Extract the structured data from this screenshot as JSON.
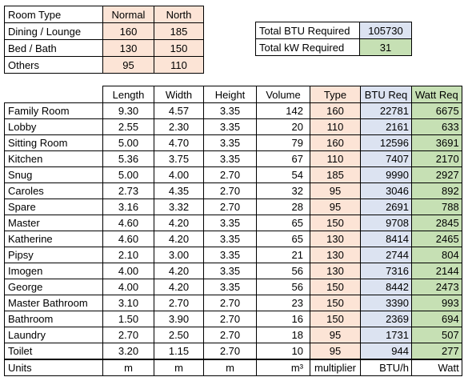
{
  "colors": {
    "peach": "#fce4d6",
    "lavender": "#dce3f1",
    "green": "#c6e0b4"
  },
  "multipliers": {
    "header": {
      "label": "Room Type",
      "normal": "Normal",
      "north": "North"
    },
    "rows": [
      {
        "label": "Dining / Lounge",
        "normal": "160",
        "north": "185"
      },
      {
        "label": "Bed / Bath",
        "normal": "130",
        "north": "150"
      },
      {
        "label": "Others",
        "normal": "95",
        "north": "110"
      }
    ]
  },
  "totals": {
    "btu_label": "Total BTU Required",
    "btu_value": "105730",
    "kw_label": "Total kW Required",
    "kw_value": "31"
  },
  "rooms": {
    "headers": {
      "length": "Length",
      "width": "Width",
      "height": "Height",
      "volume": "Volume",
      "type": "Type",
      "btu": "BTU Req",
      "watt": "Watt Req"
    },
    "rows": [
      {
        "name": "Family Room",
        "length": "9.30",
        "width": "4.57",
        "height": "3.35",
        "volume": "142",
        "type": "160",
        "btu": "22781",
        "watt": "6675"
      },
      {
        "name": "Lobby",
        "length": "2.55",
        "width": "2.30",
        "height": "3.35",
        "volume": "20",
        "type": "110",
        "btu": "2161",
        "watt": "633"
      },
      {
        "name": "Sitting Room",
        "length": "5.00",
        "width": "4.70",
        "height": "3.35",
        "volume": "79",
        "type": "160",
        "btu": "12596",
        "watt": "3691"
      },
      {
        "name": "Kitchen",
        "length": "5.36",
        "width": "3.75",
        "height": "3.35",
        "volume": "67",
        "type": "110",
        "btu": "7407",
        "watt": "2170"
      },
      {
        "name": "Snug",
        "length": "5.00",
        "width": "4.00",
        "height": "2.70",
        "volume": "54",
        "type": "185",
        "btu": "9990",
        "watt": "2927"
      },
      {
        "name": "Caroles",
        "length": "2.73",
        "width": "4.35",
        "height": "2.70",
        "volume": "32",
        "type": "95",
        "btu": "3046",
        "watt": "892"
      },
      {
        "name": "Spare",
        "length": "3.16",
        "width": "3.32",
        "height": "2.70",
        "volume": "28",
        "type": "95",
        "btu": "2691",
        "watt": "788"
      },
      {
        "name": "Master",
        "length": "4.60",
        "width": "4.20",
        "height": "3.35",
        "volume": "65",
        "type": "150",
        "btu": "9708",
        "watt": "2845"
      },
      {
        "name": "Katherine",
        "length": "4.60",
        "width": "4.20",
        "height": "3.35",
        "volume": "65",
        "type": "130",
        "btu": "8414",
        "watt": "2465"
      },
      {
        "name": "Pipsy",
        "length": "2.10",
        "width": "3.00",
        "height": "3.35",
        "volume": "21",
        "type": "130",
        "btu": "2744",
        "watt": "804"
      },
      {
        "name": "Imogen",
        "length": "4.00",
        "width": "4.20",
        "height": "3.35",
        "volume": "56",
        "type": "130",
        "btu": "7316",
        "watt": "2144"
      },
      {
        "name": "George",
        "length": "4.00",
        "width": "4.20",
        "height": "3.35",
        "volume": "56",
        "type": "150",
        "btu": "8442",
        "watt": "2473"
      },
      {
        "name": "Master Bathroom",
        "length": "3.10",
        "width": "2.70",
        "height": "2.70",
        "volume": "23",
        "type": "150",
        "btu": "3390",
        "watt": "993"
      },
      {
        "name": "Bathroom",
        "length": "1.50",
        "width": "3.90",
        "height": "2.70",
        "volume": "16",
        "type": "150",
        "btu": "2369",
        "watt": "694"
      },
      {
        "name": "Laundry",
        "length": "2.70",
        "width": "2.50",
        "height": "2.70",
        "volume": "18",
        "type": "95",
        "btu": "1731",
        "watt": "507"
      },
      {
        "name": "Toilet",
        "length": "3.20",
        "width": "1.15",
        "height": "2.70",
        "volume": "10",
        "type": "95",
        "btu": "944",
        "watt": "277"
      }
    ],
    "units": {
      "name": "Units",
      "length": "m",
      "width": "m",
      "height": "m",
      "volume": "m³",
      "type": "multiplier",
      "btu": "BTU/h",
      "watt": "Watt"
    }
  }
}
